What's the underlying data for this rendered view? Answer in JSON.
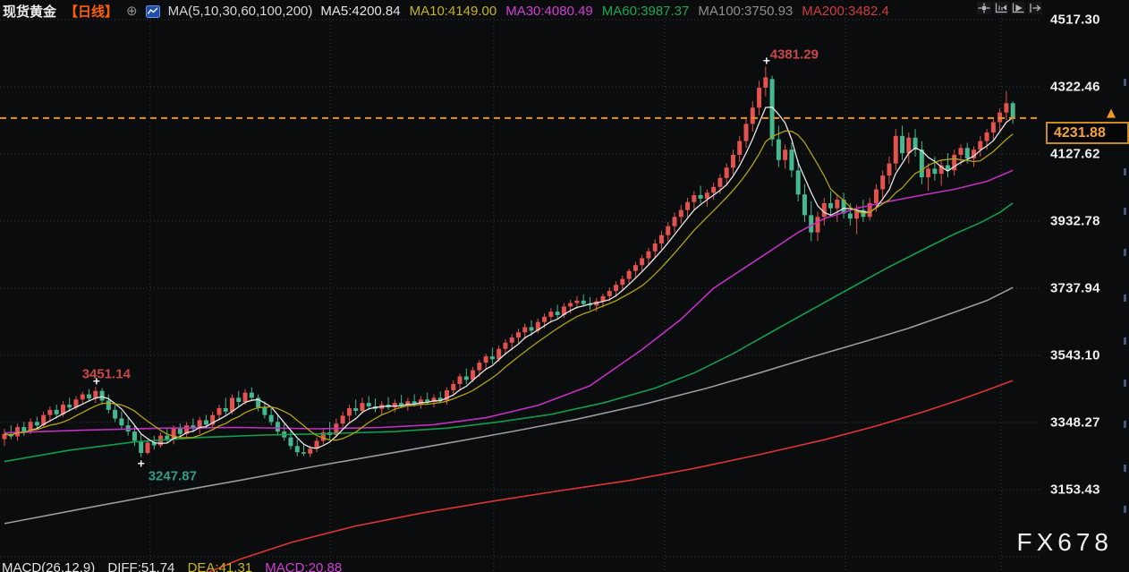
{
  "header": {
    "symbol": "现货黄金",
    "timeframe": "【日线】",
    "ma_settings": "MA(5,10,30,60,100,200)",
    "ma_values": [
      {
        "name": "MA5",
        "text": "MA5:4200.84",
        "color": "#e4e4e4"
      },
      {
        "name": "MA10",
        "text": "MA10:4149.00",
        "color": "#c9b513"
      },
      {
        "name": "MA30",
        "text": "MA30:4080.49",
        "color": "#d23fd2"
      },
      {
        "name": "MA60",
        "text": "MA60:3987.37",
        "color": "#17a851"
      },
      {
        "name": "MA100",
        "text": "MA100:3750.93",
        "color": "#8f8f8f"
      },
      {
        "name": "MA200",
        "text": "MA200:3482.4",
        "color": "#cf3d3d"
      }
    ]
  },
  "toolbar": {
    "buttons": [
      "pan-tool",
      "compress-scale-left",
      "auto-scale-play",
      "go-to-latest"
    ]
  },
  "price_axis": {
    "labels": [
      "4517.30",
      "4322.46",
      "4127.62",
      "3932.78",
      "3737.94",
      "3543.10",
      "3348.27",
      "3153.43"
    ]
  },
  "current_price": {
    "value": "4231.88"
  },
  "macd_panel": {
    "settings": "MACD(26,12,9)",
    "diff": "DIFF:51.74",
    "dea": "DEA:41.31",
    "macd": "MACD:20.88"
  },
  "watermark": "FX678",
  "colors": {
    "up": "#e2524e",
    "down": "#46b890",
    "accent_orange": "#e8941a",
    "annotation_high": "#c94848",
    "annotation_low": "#2f9d87",
    "marker": "#f0f0f0",
    "ma5": "#e6e6e6",
    "ma10": "#b3a30d",
    "ma30": "#c32fc3",
    "ma60": "#119e4b",
    "ma100": "#9b9b9b",
    "ma200": "#e03434",
    "grid": "#34373c"
  },
  "chart_data": {
    "type": "candlestick",
    "title": "现货黄金 日线",
    "y_axis_ticks": [
      4517.3,
      4322.46,
      4127.62,
      3932.78,
      3737.94,
      3543.1,
      3348.27,
      3153.43
    ],
    "extra_gridline": 2958.59,
    "ylim": [
      2890,
      4560
    ],
    "last_price": 4231.88,
    "high_label": 4381.29,
    "low_label": 3247.87,
    "swing_high_label": 3451.14,
    "v_gridline_indices": [
      22.4,
      50.1,
      75.2,
      101.5,
      129.3,
      153.2
    ],
    "annotations": [
      {
        "text": "4381.29",
        "candle_index": 117,
        "align": "above-right",
        "colorKey": "annotation_high"
      },
      {
        "text": "3451.14",
        "candle_index": 14,
        "align": "above",
        "colorKey": "annotation_high"
      },
      {
        "text": "3247.87",
        "candle_index": 21,
        "align": "below-right",
        "colorKey": "annotation_low"
      }
    ],
    "ma_periods_computed": [
      {
        "period": 5,
        "colorKey": "ma5"
      },
      {
        "period": 10,
        "colorKey": "ma10"
      }
    ],
    "ma_overlays": [
      {
        "name": "MA30",
        "colorKey": "ma30",
        "points": [
          [
            0,
            3318
          ],
          [
            12,
            3326
          ],
          [
            24,
            3332
          ],
          [
            36,
            3334
          ],
          [
            48,
            3330
          ],
          [
            58,
            3334
          ],
          [
            66,
            3342
          ],
          [
            74,
            3362
          ],
          [
            82,
            3398
          ],
          [
            90,
            3455
          ],
          [
            98,
            3560
          ],
          [
            104,
            3648
          ],
          [
            109,
            3738
          ],
          [
            114,
            3800
          ],
          [
            118,
            3850
          ],
          [
            122,
            3900
          ],
          [
            126,
            3940
          ],
          [
            131,
            3970
          ],
          [
            136,
            3990
          ],
          [
            141,
            4008
          ],
          [
            146,
            4025
          ],
          [
            151,
            4048
          ],
          [
            155,
            4080
          ]
        ]
      },
      {
        "name": "MA60",
        "colorKey": "ma60",
        "points": [
          [
            0,
            3235
          ],
          [
            10,
            3268
          ],
          [
            20,
            3292
          ],
          [
            30,
            3305
          ],
          [
            40,
            3312
          ],
          [
            50,
            3316
          ],
          [
            60,
            3322
          ],
          [
            68,
            3332
          ],
          [
            76,
            3350
          ],
          [
            84,
            3372
          ],
          [
            92,
            3405
          ],
          [
            100,
            3448
          ],
          [
            106,
            3492
          ],
          [
            112,
            3548
          ],
          [
            118,
            3612
          ],
          [
            124,
            3675
          ],
          [
            130,
            3738
          ],
          [
            136,
            3800
          ],
          [
            141,
            3848
          ],
          [
            146,
            3895
          ],
          [
            150,
            3928
          ],
          [
            153,
            3958
          ],
          [
            155,
            3985
          ]
        ]
      },
      {
        "name": "MA100",
        "colorKey": "ma100",
        "points": [
          [
            0,
            3055
          ],
          [
            12,
            3098
          ],
          [
            24,
            3140
          ],
          [
            36,
            3180
          ],
          [
            48,
            3222
          ],
          [
            58,
            3255
          ],
          [
            68,
            3288
          ],
          [
            78,
            3322
          ],
          [
            88,
            3358
          ],
          [
            98,
            3400
          ],
          [
            108,
            3448
          ],
          [
            116,
            3492
          ],
          [
            124,
            3538
          ],
          [
            132,
            3582
          ],
          [
            139,
            3622
          ],
          [
            146,
            3668
          ],
          [
            151,
            3702
          ],
          [
            155,
            3740
          ]
        ]
      },
      {
        "name": "MA200",
        "colorKey": "ma200",
        "points": [
          [
            29,
            2895
          ],
          [
            36,
            2950
          ],
          [
            44,
            3000
          ],
          [
            54,
            3048
          ],
          [
            64,
            3085
          ],
          [
            75,
            3120
          ],
          [
            86,
            3152
          ],
          [
            96,
            3180
          ],
          [
            106,
            3215
          ],
          [
            116,
            3255
          ],
          [
            126,
            3298
          ],
          [
            134,
            3338
          ],
          [
            141,
            3378
          ],
          [
            147,
            3415
          ],
          [
            151,
            3442
          ],
          [
            155,
            3470
          ]
        ]
      }
    ],
    "candles": [
      [
        3300,
        3330,
        3280,
        3315
      ],
      [
        3315,
        3340,
        3300,
        3308
      ],
      [
        3308,
        3345,
        3295,
        3335
      ],
      [
        3335,
        3350,
        3310,
        3320
      ],
      [
        3320,
        3360,
        3315,
        3350
      ],
      [
        3350,
        3365,
        3330,
        3340
      ],
      [
        3340,
        3380,
        3335,
        3370
      ],
      [
        3370,
        3395,
        3350,
        3385
      ],
      [
        3385,
        3400,
        3360,
        3372
      ],
      [
        3372,
        3410,
        3365,
        3400
      ],
      [
        3400,
        3420,
        3380,
        3392
      ],
      [
        3392,
        3425,
        3385,
        3415
      ],
      [
        3415,
        3438,
        3400,
        3430
      ],
      [
        3430,
        3445,
        3408,
        3418
      ],
      [
        3418,
        3451.14,
        3405,
        3440
      ],
      [
        3440,
        3448,
        3400,
        3412
      ],
      [
        3412,
        3430,
        3375,
        3385
      ],
      [
        3385,
        3400,
        3350,
        3360
      ],
      [
        3360,
        3380,
        3330,
        3340
      ],
      [
        3340,
        3360,
        3310,
        3322
      ],
      [
        3322,
        3340,
        3280,
        3295
      ],
      [
        3295,
        3315,
        3247.87,
        3260
      ],
      [
        3260,
        3300,
        3255,
        3290
      ],
      [
        3290,
        3310,
        3270,
        3282
      ],
      [
        3282,
        3320,
        3275,
        3310
      ],
      [
        3310,
        3330,
        3290,
        3300
      ],
      [
        3300,
        3340,
        3285,
        3330
      ],
      [
        3330,
        3345,
        3305,
        3315
      ],
      [
        3315,
        3350,
        3300,
        3340
      ],
      [
        3340,
        3360,
        3320,
        3330
      ],
      [
        3330,
        3365,
        3315,
        3355
      ],
      [
        3355,
        3370,
        3330,
        3342
      ],
      [
        3342,
        3380,
        3335,
        3370
      ],
      [
        3370,
        3400,
        3355,
        3390
      ],
      [
        3390,
        3420,
        3370,
        3380
      ],
      [
        3380,
        3430,
        3372,
        3420
      ],
      [
        3420,
        3440,
        3395,
        3408
      ],
      [
        3408,
        3445,
        3400,
        3435
      ],
      [
        3435,
        3450,
        3410,
        3420
      ],
      [
        3420,
        3430,
        3380,
        3392
      ],
      [
        3392,
        3410,
        3360,
        3370
      ],
      [
        3370,
        3390,
        3340,
        3350
      ],
      [
        3350,
        3370,
        3310,
        3322
      ],
      [
        3322,
        3345,
        3295,
        3305
      ],
      [
        3305,
        3325,
        3270,
        3280
      ],
      [
        3280,
        3300,
        3250,
        3262
      ],
      [
        3262,
        3285,
        3252,
        3258
      ],
      [
        3258,
        3282,
        3248,
        3272
      ],
      [
        3272,
        3305,
        3262,
        3295
      ],
      [
        3295,
        3330,
        3285,
        3320
      ],
      [
        3320,
        3350,
        3300,
        3312
      ],
      [
        3312,
        3360,
        3305,
        3345
      ],
      [
        3345,
        3380,
        3330,
        3368
      ],
      [
        3368,
        3400,
        3350,
        3390
      ],
      [
        3390,
        3415,
        3370,
        3382
      ],
      [
        3382,
        3420,
        3375,
        3405
      ],
      [
        3405,
        3425,
        3385,
        3395
      ],
      [
        3395,
        3418,
        3378,
        3388
      ],
      [
        3388,
        3410,
        3370,
        3400
      ],
      [
        3400,
        3422,
        3385,
        3392
      ],
      [
        3392,
        3415,
        3378,
        3405
      ],
      [
        3405,
        3428,
        3390,
        3398
      ],
      [
        3398,
        3420,
        3382,
        3410
      ],
      [
        3410,
        3430,
        3395,
        3402
      ],
      [
        3402,
        3425,
        3388,
        3415
      ],
      [
        3415,
        3435,
        3400,
        3408
      ],
      [
        3408,
        3430,
        3392,
        3420
      ],
      [
        3420,
        3438,
        3405,
        3412
      ],
      [
        3412,
        3450,
        3400,
        3442
      ],
      [
        3442,
        3470,
        3425,
        3460
      ],
      [
        3460,
        3490,
        3440,
        3482
      ],
      [
        3482,
        3505,
        3460,
        3472
      ],
      [
        3472,
        3510,
        3465,
        3500
      ],
      [
        3500,
        3530,
        3480,
        3522
      ],
      [
        3522,
        3548,
        3500,
        3540
      ],
      [
        3540,
        3565,
        3518,
        3532
      ],
      [
        3532,
        3572,
        3525,
        3562
      ],
      [
        3562,
        3590,
        3545,
        3580
      ],
      [
        3580,
        3605,
        3558,
        3595
      ],
      [
        3595,
        3620,
        3575,
        3610
      ],
      [
        3610,
        3635,
        3590,
        3625
      ],
      [
        3625,
        3645,
        3600,
        3615
      ],
      [
        3615,
        3650,
        3608,
        3640
      ],
      [
        3640,
        3665,
        3622,
        3655
      ],
      [
        3655,
        3680,
        3638,
        3670
      ],
      [
        3670,
        3690,
        3648,
        3660
      ],
      [
        3660,
        3695,
        3652,
        3685
      ],
      [
        3685,
        3705,
        3665,
        3695
      ],
      [
        3695,
        3715,
        3678,
        3702
      ],
      [
        3702,
        3720,
        3685,
        3692
      ],
      [
        3692,
        3712,
        3675,
        3688
      ],
      [
        3688,
        3710,
        3670,
        3700
      ],
      [
        3700,
        3722,
        3682,
        3715
      ],
      [
        3715,
        3740,
        3700,
        3730
      ],
      [
        3730,
        3758,
        3712,
        3748
      ],
      [
        3748,
        3775,
        3730,
        3765
      ],
      [
        3765,
        3795,
        3748,
        3788
      ],
      [
        3788,
        3815,
        3770,
        3805
      ],
      [
        3805,
        3835,
        3788,
        3825
      ],
      [
        3825,
        3855,
        3808,
        3845
      ],
      [
        3845,
        3880,
        3828,
        3868
      ],
      [
        3868,
        3905,
        3850,
        3892
      ],
      [
        3892,
        3930,
        3875,
        3918
      ],
      [
        3918,
        3958,
        3900,
        3945
      ],
      [
        3945,
        3980,
        3925,
        3965
      ],
      [
        3965,
        4000,
        3945,
        3988
      ],
      [
        3988,
        4020,
        3968,
        4008
      ],
      [
        4008,
        4035,
        3985,
        3998
      ],
      [
        3998,
        4025,
        3975,
        4015
      ],
      [
        4015,
        4045,
        3995,
        4032
      ],
      [
        4032,
        4070,
        4012,
        4058
      ],
      [
        4058,
        4100,
        4040,
        4088
      ],
      [
        4088,
        4140,
        4068,
        4125
      ],
      [
        4125,
        4180,
        4105,
        4165
      ],
      [
        4165,
        4230,
        4145,
        4215
      ],
      [
        4215,
        4280,
        4192,
        4262
      ],
      [
        4262,
        4340,
        4240,
        4320
      ],
      [
        4320,
        4381.29,
        4295,
        4350
      ],
      [
        4345,
        4355,
        4150,
        4170
      ],
      [
        4170,
        4210,
        4090,
        4110
      ],
      [
        4110,
        4155,
        4085,
        4140
      ],
      [
        4140,
        4160,
        4060,
        4080
      ],
      [
        4080,
        4110,
        3990,
        4010
      ],
      [
        4010,
        4040,
        3930,
        3950
      ],
      [
        3950,
        3990,
        3875,
        3900
      ],
      [
        3900,
        3960,
        3875,
        3945
      ],
      [
        3945,
        4000,
        3920,
        3985
      ],
      [
        3985,
        4020,
        3950,
        3970
      ],
      [
        3970,
        4010,
        3930,
        3995
      ],
      [
        3995,
        4015,
        3940,
        3955
      ],
      [
        3955,
        3985,
        3920,
        3940
      ],
      [
        3940,
        3980,
        3895,
        3965
      ],
      [
        3965,
        3995,
        3930,
        3945
      ],
      [
        3945,
        4000,
        3935,
        3985
      ],
      [
        3985,
        4040,
        3960,
        4025
      ],
      [
        4025,
        4080,
        4000,
        4065
      ],
      [
        4065,
        4120,
        4040,
        4100
      ],
      [
        4100,
        4200,
        4080,
        4180
      ],
      [
        4180,
        4210,
        4110,
        4130
      ],
      [
        4130,
        4190,
        4100,
        4175
      ],
      [
        4175,
        4200,
        4120,
        4140
      ],
      [
        4140,
        4165,
        4040,
        4060
      ],
      [
        4060,
        4100,
        4020,
        4085
      ],
      [
        4085,
        4120,
        4050,
        4070
      ],
      [
        4070,
        4110,
        4035,
        4095
      ],
      [
        4095,
        4130,
        4060,
        4080
      ],
      [
        4080,
        4140,
        4065,
        4125
      ],
      [
        4125,
        4155,
        4095,
        4145
      ],
      [
        4145,
        4160,
        4100,
        4115
      ],
      [
        4115,
        4150,
        4090,
        4140
      ],
      [
        4140,
        4180,
        4120,
        4165
      ],
      [
        4165,
        4200,
        4140,
        4190
      ],
      [
        4190,
        4230,
        4165,
        4220
      ],
      [
        4220,
        4260,
        4195,
        4248
      ],
      [
        4248,
        4310,
        4225,
        4275
      ],
      [
        4275,
        4280,
        4215,
        4231.88
      ]
    ]
  }
}
